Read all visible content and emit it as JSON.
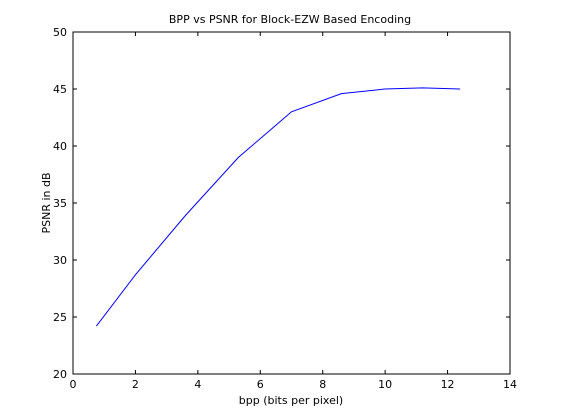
{
  "chart_data": {
    "type": "line",
    "title": "BPP vs PSNR for Block-EZW Based Encoding",
    "xlabel": "bpp (bits per pixel)",
    "ylabel": "PSNR in dB",
    "xlim": [
      0,
      14
    ],
    "ylim": [
      20,
      50
    ],
    "xticks": [
      0,
      2,
      4,
      6,
      8,
      10,
      12,
      14
    ],
    "yticks": [
      20,
      25,
      30,
      35,
      40,
      45,
      50
    ],
    "grid": false,
    "series": [
      {
        "color": "#0000ff",
        "x": [
          0.75,
          2.0,
          3.6,
          5.3,
          7.0,
          8.6,
          10.0,
          11.2,
          12.4
        ],
        "y": [
          24.2,
          28.7,
          33.9,
          39.0,
          43.0,
          44.6,
          45.0,
          45.1,
          45.0
        ]
      }
    ]
  }
}
